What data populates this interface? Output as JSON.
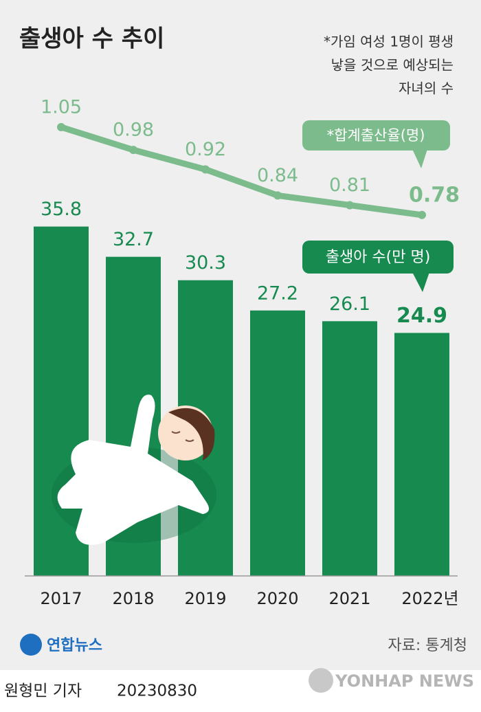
{
  "chart_data": [
    {
      "type": "bar",
      "title": "출생아 수 추이",
      "note": [
        "*가임 여성 1명이 평생",
        "낳을 것으로 예상되는",
        "자녀의 수"
      ],
      "categories": [
        "2017",
        "2018",
        "2019",
        "2020",
        "2021",
        "2022년"
      ],
      "series": [
        {
          "name": "출생아 수(만 명)",
          "color": "#168a4f",
          "values": [
            35.8,
            32.7,
            30.3,
            27.2,
            26.1,
            24.9
          ]
        }
      ],
      "ylim": [
        0,
        40
      ]
    },
    {
      "type": "line",
      "series": [
        {
          "name": "*합계출산율(명)",
          "color": "#7cbb8c",
          "values": [
            1.05,
            0.98,
            0.92,
            0.84,
            0.81,
            0.78
          ]
        }
      ],
      "ylim": [
        0.6,
        1.2
      ]
    }
  ],
  "logo": "연합뉴스",
  "source": "자료: 통계청",
  "credit": "원형민 기자",
  "date": "20230830",
  "watermark": "YONHAP NEWS"
}
